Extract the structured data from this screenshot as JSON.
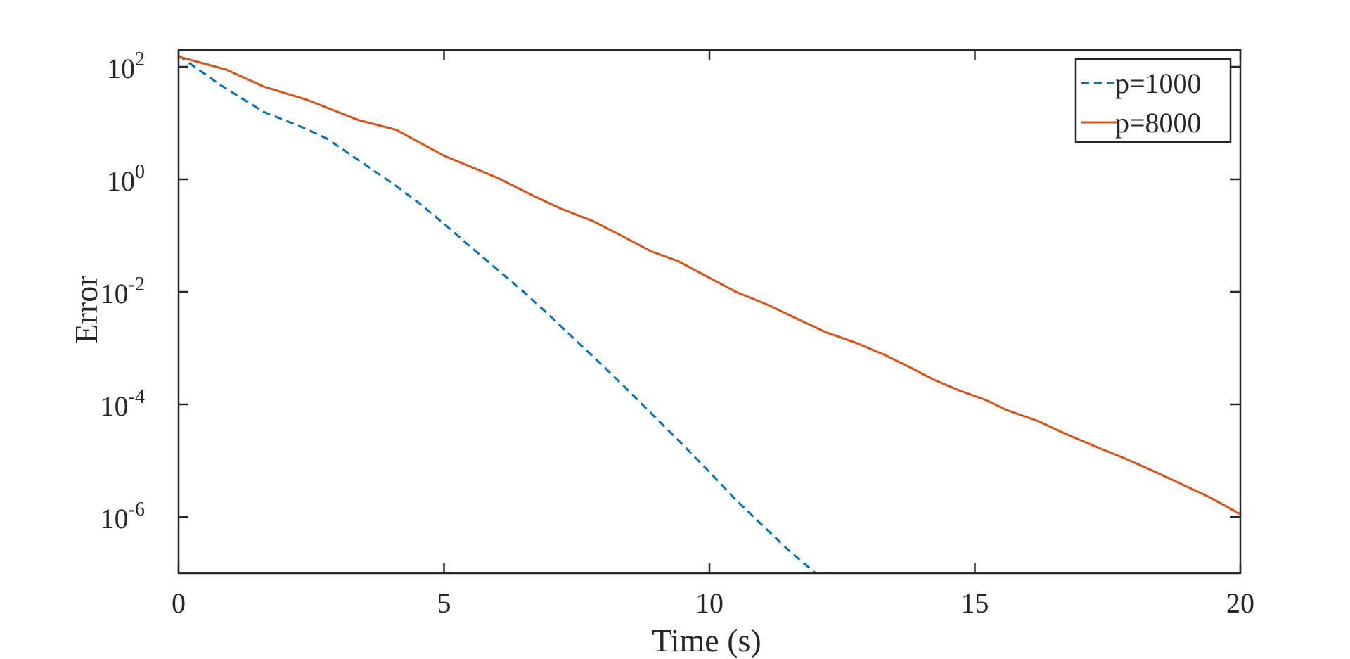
{
  "chart_data": {
    "type": "line",
    "xlabel": "Time (s)",
    "ylabel": "Error",
    "xlim": [
      0,
      20
    ],
    "ylim_log10": [
      -7,
      2.3
    ],
    "y_scale": "log",
    "grid": false,
    "legend_placement": "top-right",
    "x_ticks": [
      {
        "value": 0,
        "label": "0"
      },
      {
        "value": 5,
        "label": "5"
      },
      {
        "value": 10,
        "label": "10"
      },
      {
        "value": 15,
        "label": "15"
      },
      {
        "value": 20,
        "label": "20"
      }
    ],
    "y_ticks": [
      {
        "exp": 2,
        "base": "10",
        "power": "2"
      },
      {
        "exp": 0,
        "base": "10",
        "power": "0"
      },
      {
        "exp": -2,
        "base": "10",
        "power": "-2"
      },
      {
        "exp": -4,
        "base": "10",
        "power": "-4"
      },
      {
        "exp": -6,
        "base": "10",
        "power": "-6"
      }
    ],
    "series": [
      {
        "name": "p=1000",
        "color": "#0072BD",
        "style": "dashed",
        "x": [
          0,
          0.8,
          1.6,
          2.4,
          2.8,
          3.3,
          3.7,
          4.1,
          4.5,
          5.0,
          5.5,
          6.0,
          6.5,
          7.0,
          7.5,
          8.0,
          8.5,
          9.0,
          9.5,
          10.0,
          10.5,
          11.0,
          11.5,
          12.0,
          12.4
        ],
        "y_log10": [
          2.2,
          1.67,
          1.2,
          0.9,
          0.72,
          0.4,
          0.14,
          -0.12,
          -0.4,
          -0.79,
          -1.2,
          -1.6,
          -2.0,
          -2.43,
          -2.88,
          -3.32,
          -3.78,
          -4.25,
          -4.72,
          -5.2,
          -5.7,
          -6.15,
          -6.6,
          -7.0,
          -7.0
        ]
      },
      {
        "name": "p=8000",
        "color": "#D95319",
        "style": "solid",
        "x": [
          0,
          0.9,
          1.6,
          2.4,
          3.4,
          4.1,
          5.0,
          6.0,
          6.7,
          7.2,
          7.8,
          8.3,
          8.9,
          9.4,
          10.0,
          10.5,
          11.1,
          11.7,
          12.2,
          12.8,
          13.3,
          13.8,
          14.2,
          14.7,
          15.2,
          15.6,
          16.2,
          16.7,
          17.3,
          17.8,
          18.4,
          18.9,
          19.4,
          20.0
        ],
        "y_log10": [
          2.18,
          1.95,
          1.65,
          1.42,
          1.05,
          0.88,
          0.42,
          0.03,
          -0.3,
          -0.52,
          -0.74,
          -0.98,
          -1.28,
          -1.45,
          -1.75,
          -2.0,
          -2.23,
          -2.5,
          -2.72,
          -2.92,
          -3.12,
          -3.35,
          -3.55,
          -3.75,
          -3.92,
          -4.1,
          -4.3,
          -4.52,
          -4.76,
          -4.95,
          -5.2,
          -5.42,
          -5.64,
          -5.95
        ]
      }
    ]
  }
}
